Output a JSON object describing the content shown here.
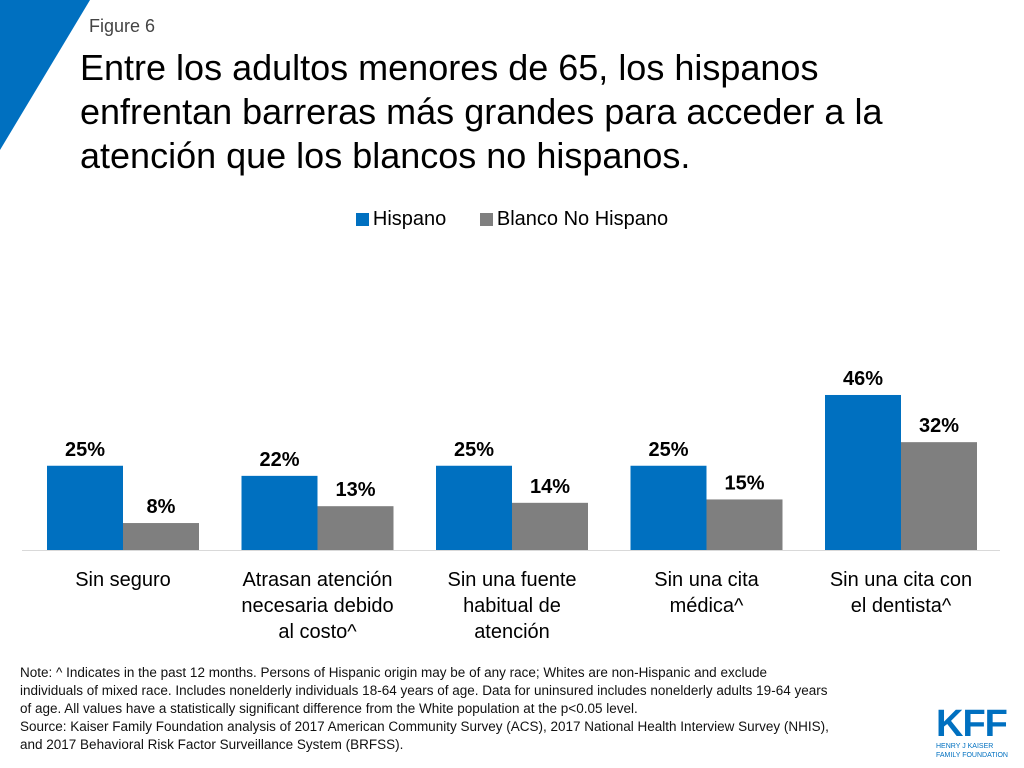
{
  "figure_label": "Figure 6",
  "title": "Entre los adultos menores de 65, los hispanos enfrentan barreras más grandes para acceder a la atención que los blancos no hispanos.",
  "colors": {
    "hispano": "#0070c0",
    "blanco": "#7f7f7f",
    "accent": "#0070c0"
  },
  "chart_data": {
    "type": "bar",
    "title": "Entre los adultos menores de 65, los hispanos enfrentan barreras más grandes para acceder a la atención que los blancos no hispanos.",
    "xlabel": "",
    "ylabel": "",
    "ylim": [
      0,
      60
    ],
    "grid": false,
    "legend_position": "top-center",
    "categories": [
      "Sin seguro",
      "Atrasan atención necesaria debido al costo^",
      "Sin una fuente habitual de atención",
      "Sin una cita médica^",
      "Sin una cita con el dentista^"
    ],
    "category_lines": [
      [
        "Sin seguro"
      ],
      [
        "Atrasan atención",
        "necesaria debido",
        "al costo^"
      ],
      [
        "Sin una fuente",
        "habitual de",
        "atención"
      ],
      [
        "Sin una cita",
        "médica^"
      ],
      [
        "Sin una cita con",
        "el dentista^"
      ]
    ],
    "series": [
      {
        "name": "Hispano",
        "values": [
          25,
          22,
          25,
          25,
          46
        ],
        "labels": [
          "25%",
          "22%",
          "25%",
          "25%",
          "46%"
        ]
      },
      {
        "name": "Blanco No Hispano",
        "values": [
          8,
          13,
          14,
          15,
          32
        ],
        "labels": [
          "8%",
          "13%",
          "14%",
          "15%",
          "32%"
        ]
      }
    ]
  },
  "note_lines": [
    "Note: ^ Indicates in the past 12 months. Persons of Hispanic origin may be of any race; Whites are non-Hispanic and exclude",
    "individuals of mixed race. Includes nonelderly individuals 18-64 years of age. Data for uninsured includes nonelderly adults 19-64 years",
    "of age. All values have a statistically significant difference from the White population at the p<0.05 level.",
    "Source: Kaiser Family Foundation analysis of 2017 American Community Survey (ACS), 2017 National Health Interview Survey (NHIS),",
    "and 2017 Behavioral Risk Factor Surveillance System (BRFSS)."
  ],
  "logo": {
    "text": "KFF",
    "subtitle_line1": "HENRY J KAISER",
    "subtitle_line2": "FAMILY FOUNDATION"
  }
}
